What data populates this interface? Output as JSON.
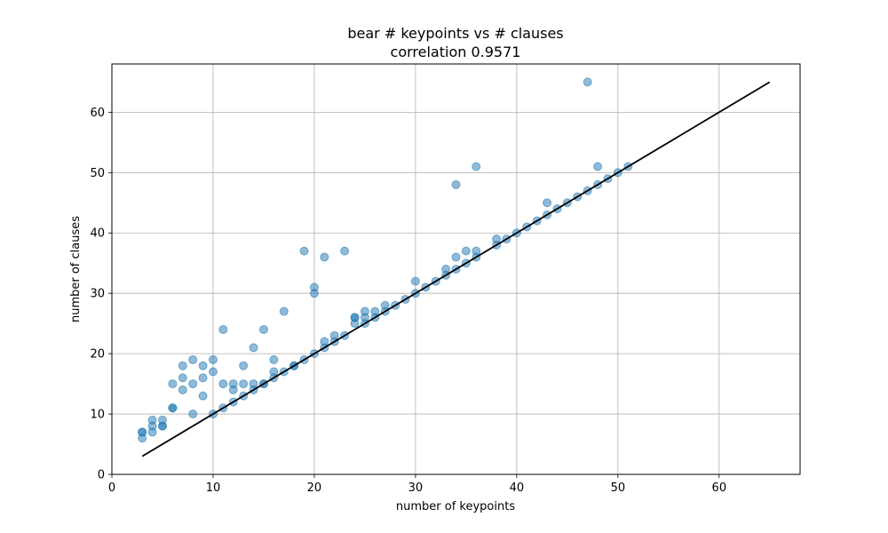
{
  "chart_data": {
    "type": "scatter",
    "title": "bear # keypoints vs # clauses",
    "subtitle": "correlation 0.9571",
    "xlabel": "number of keypoints",
    "ylabel": "number of clauses",
    "xlim": [
      0,
      68
    ],
    "ylim": [
      0,
      68
    ],
    "xticks": [
      0,
      10,
      20,
      30,
      40,
      50,
      60
    ],
    "yticks": [
      0,
      10,
      20,
      30,
      40,
      50,
      60
    ],
    "grid": true,
    "colors": {
      "points": "#1f77b4",
      "line": "#000000"
    },
    "points": [
      [
        3,
        6
      ],
      [
        3,
        7
      ],
      [
        3,
        7
      ],
      [
        4,
        7
      ],
      [
        4,
        8
      ],
      [
        4,
        9
      ],
      [
        5,
        8
      ],
      [
        5,
        8
      ],
      [
        5,
        9
      ],
      [
        6,
        11
      ],
      [
        6,
        11
      ],
      [
        6,
        15
      ],
      [
        7,
        14
      ],
      [
        7,
        16
      ],
      [
        7,
        18
      ],
      [
        8,
        10
      ],
      [
        8,
        15
      ],
      [
        8,
        19
      ],
      [
        9,
        13
      ],
      [
        9,
        16
      ],
      [
        9,
        18
      ],
      [
        10,
        10
      ],
      [
        10,
        17
      ],
      [
        10,
        19
      ],
      [
        11,
        11
      ],
      [
        11,
        15
      ],
      [
        11,
        24
      ],
      [
        12,
        12
      ],
      [
        12,
        14
      ],
      [
        12,
        15
      ],
      [
        13,
        13
      ],
      [
        13,
        15
      ],
      [
        13,
        18
      ],
      [
        14,
        14
      ],
      [
        14,
        15
      ],
      [
        14,
        21
      ],
      [
        15,
        15
      ],
      [
        15,
        15
      ],
      [
        15,
        24
      ],
      [
        16,
        16
      ],
      [
        16,
        17
      ],
      [
        16,
        19
      ],
      [
        17,
        17
      ],
      [
        17,
        27
      ],
      [
        18,
        18
      ],
      [
        18,
        18
      ],
      [
        19,
        19
      ],
      [
        19,
        37
      ],
      [
        20,
        20
      ],
      [
        20,
        30
      ],
      [
        20,
        31
      ],
      [
        21,
        21
      ],
      [
        21,
        22
      ],
      [
        21,
        36
      ],
      [
        22,
        22
      ],
      [
        22,
        23
      ],
      [
        23,
        23
      ],
      [
        23,
        37
      ],
      [
        24,
        25
      ],
      [
        24,
        26
      ],
      [
        24,
        26
      ],
      [
        25,
        25
      ],
      [
        25,
        26
      ],
      [
        25,
        27
      ],
      [
        26,
        26
      ],
      [
        26,
        27
      ],
      [
        27,
        27
      ],
      [
        27,
        28
      ],
      [
        28,
        28
      ],
      [
        29,
        29
      ],
      [
        30,
        30
      ],
      [
        30,
        32
      ],
      [
        31,
        31
      ],
      [
        32,
        32
      ],
      [
        33,
        33
      ],
      [
        33,
        34
      ],
      [
        34,
        34
      ],
      [
        34,
        36
      ],
      [
        34,
        48
      ],
      [
        35,
        35
      ],
      [
        35,
        37
      ],
      [
        36,
        36
      ],
      [
        36,
        37
      ],
      [
        36,
        51
      ],
      [
        38,
        38
      ],
      [
        38,
        39
      ],
      [
        39,
        39
      ],
      [
        40,
        40
      ],
      [
        41,
        41
      ],
      [
        42,
        42
      ],
      [
        43,
        43
      ],
      [
        43,
        45
      ],
      [
        44,
        44
      ],
      [
        45,
        45
      ],
      [
        46,
        46
      ],
      [
        47,
        47
      ],
      [
        47,
        65
      ],
      [
        48,
        48
      ],
      [
        48,
        51
      ],
      [
        49,
        49
      ],
      [
        50,
        50
      ],
      [
        51,
        51
      ]
    ],
    "fit_line": {
      "x": [
        3,
        65
      ],
      "y": [
        3,
        65
      ]
    }
  }
}
